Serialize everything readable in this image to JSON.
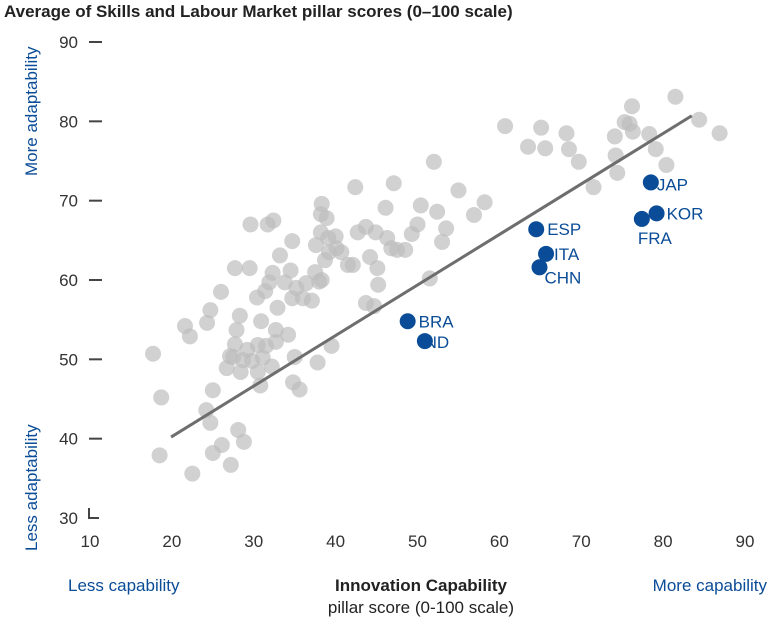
{
  "chart_data": {
    "type": "scatter",
    "title": "Average of Skills and Labour Market pillar scores (0–100 scale)",
    "xlabel": [
      "Innovation Capability",
      "pillar score (0-100 scale)"
    ],
    "x_annotations": {
      "low": "Less capability",
      "high": "More capability"
    },
    "y_annotations": {
      "low": "Less adaptability",
      "high": "More adaptability"
    },
    "xlim": [
      10,
      90
    ],
    "ylim": [
      30,
      90
    ],
    "xticks": [
      "10",
      "20",
      "30",
      "40",
      "50",
      "60",
      "70",
      "80",
      "90"
    ],
    "yticks": [
      "30",
      "40",
      "50",
      "60",
      "70",
      "80",
      "90"
    ],
    "grid": false,
    "colors": {
      "highlight": "#0a4c97",
      "other": "#bdbdbd",
      "trend": "#6e6e6e"
    },
    "trendline": [
      [
        19.9,
        40.2
      ],
      [
        83.5,
        80.7
      ]
    ],
    "highlighted": [
      {
        "label": "BRA",
        "x": 48.8,
        "y": 54.8
      },
      {
        "label": "IND",
        "x": 50.9,
        "y": 52.3
      },
      {
        "label": "ESP",
        "x": 64.5,
        "y": 66.4
      },
      {
        "label": "ITA",
        "x": 65.7,
        "y": 63.3
      },
      {
        "label": "CHN",
        "x": 64.9,
        "y": 61.6
      },
      {
        "label": "JAP",
        "x": 78.5,
        "y": 72.3
      },
      {
        "label": "KOR",
        "x": 79.2,
        "y": 68.4
      },
      {
        "label": "FRA",
        "x": 77.4,
        "y": 67.7
      }
    ],
    "others": [
      [
        17.7,
        50.7
      ],
      [
        18.7,
        45.2
      ],
      [
        18.5,
        37.9
      ],
      [
        21.6,
        54.2
      ],
      [
        22.2,
        52.9
      ],
      [
        22.5,
        35.6
      ],
      [
        24.3,
        54.6
      ],
      [
        24.7,
        56.2
      ],
      [
        24.2,
        43.6
      ],
      [
        24.7,
        42.0
      ],
      [
        25.0,
        46.1
      ],
      [
        25.0,
        38.2
      ],
      [
        26.0,
        58.5
      ],
      [
        26.1,
        39.2
      ],
      [
        26.7,
        48.9
      ],
      [
        27.1,
        50.4
      ],
      [
        27.2,
        36.7
      ],
      [
        27.7,
        61.5
      ],
      [
        27.9,
        53.7
      ],
      [
        27.7,
        51.9
      ],
      [
        27.5,
        50.3
      ],
      [
        28.3,
        55.5
      ],
      [
        28.4,
        48.4
      ],
      [
        28.1,
        41.1
      ],
      [
        28.8,
        39.6
      ],
      [
        28.7,
        49.9
      ],
      [
        29.2,
        51.2
      ],
      [
        29.5,
        61.5
      ],
      [
        29.6,
        67.0
      ],
      [
        29.8,
        49.8
      ],
      [
        30.4,
        57.8
      ],
      [
        30.5,
        51.8
      ],
      [
        30.5,
        48.4
      ],
      [
        30.8,
        46.7
      ],
      [
        30.9,
        54.8
      ],
      [
        31.1,
        50.2
      ],
      [
        31.4,
        58.6
      ],
      [
        31.5,
        51.7
      ],
      [
        31.7,
        67.0
      ],
      [
        31.9,
        59.7
      ],
      [
        32.2,
        49.1
      ],
      [
        32.3,
        60.9
      ],
      [
        32.4,
        67.5
      ],
      [
        32.7,
        52.2
      ],
      [
        32.9,
        56.5
      ],
      [
        32.7,
        53.7
      ],
      [
        33.2,
        63.1
      ],
      [
        33.8,
        59.7
      ],
      [
        34.2,
        53.1
      ],
      [
        34.5,
        61.2
      ],
      [
        34.7,
        64.9
      ],
      [
        34.7,
        57.7
      ],
      [
        34.8,
        47.1
      ],
      [
        35.0,
        50.3
      ],
      [
        35.2,
        59.0
      ],
      [
        35.6,
        46.2
      ],
      [
        36.0,
        57.7
      ],
      [
        36.4,
        59.6
      ],
      [
        37.1,
        57.4
      ],
      [
        37.5,
        61.0
      ],
      [
        37.6,
        64.4
      ],
      [
        37.8,
        49.6
      ],
      [
        38.0,
        59.8
      ],
      [
        38.2,
        66.0
      ],
      [
        38.2,
        68.3
      ],
      [
        38.3,
        69.6
      ],
      [
        38.3,
        60.0
      ],
      [
        38.7,
        62.5
      ],
      [
        38.9,
        67.8
      ],
      [
        39.1,
        65.3
      ],
      [
        39.2,
        63.5
      ],
      [
        39.5,
        51.7
      ],
      [
        40.0,
        65.5
      ],
      [
        40.1,
        64.0
      ],
      [
        40.7,
        63.5
      ],
      [
        41.5,
        61.9
      ],
      [
        42.1,
        61.9
      ],
      [
        42.4,
        71.7
      ],
      [
        42.7,
        66.0
      ],
      [
        43.7,
        66.7
      ],
      [
        43.7,
        57.1
      ],
      [
        44.2,
        62.9
      ],
      [
        44.7,
        56.7
      ],
      [
        44.9,
        66.0
      ],
      [
        45.1,
        61.5
      ],
      [
        45.2,
        59.4
      ],
      [
        46.1,
        69.1
      ],
      [
        46.3,
        65.3
      ],
      [
        46.8,
        64.0
      ],
      [
        47.1,
        72.2
      ],
      [
        47.5,
        63.8
      ],
      [
        48.5,
        63.8
      ],
      [
        49.3,
        65.8
      ],
      [
        50.0,
        67.0
      ],
      [
        50.4,
        69.4
      ],
      [
        51.5,
        60.2
      ],
      [
        52.0,
        74.9
      ],
      [
        52.4,
        68.6
      ],
      [
        53.0,
        64.8
      ],
      [
        53.5,
        66.5
      ],
      [
        55.0,
        71.3
      ],
      [
        56.9,
        68.2
      ],
      [
        58.2,
        69.8
      ],
      [
        60.7,
        79.4
      ],
      [
        63.5,
        76.8
      ],
      [
        65.1,
        79.2
      ],
      [
        65.6,
        76.6
      ],
      [
        68.2,
        78.5
      ],
      [
        68.5,
        76.5
      ],
      [
        69.7,
        74.9
      ],
      [
        71.5,
        71.7
      ],
      [
        74.1,
        78.1
      ],
      [
        74.2,
        75.7
      ],
      [
        74.4,
        73.5
      ],
      [
        75.3,
        79.9
      ],
      [
        75.9,
        79.7
      ],
      [
        76.2,
        81.9
      ],
      [
        76.3,
        78.7
      ],
      [
        78.3,
        78.4
      ],
      [
        79.1,
        76.5
      ],
      [
        80.4,
        74.5
      ],
      [
        81.5,
        83.1
      ],
      [
        84.4,
        80.2
      ],
      [
        86.9,
        78.5
      ]
    ]
  }
}
